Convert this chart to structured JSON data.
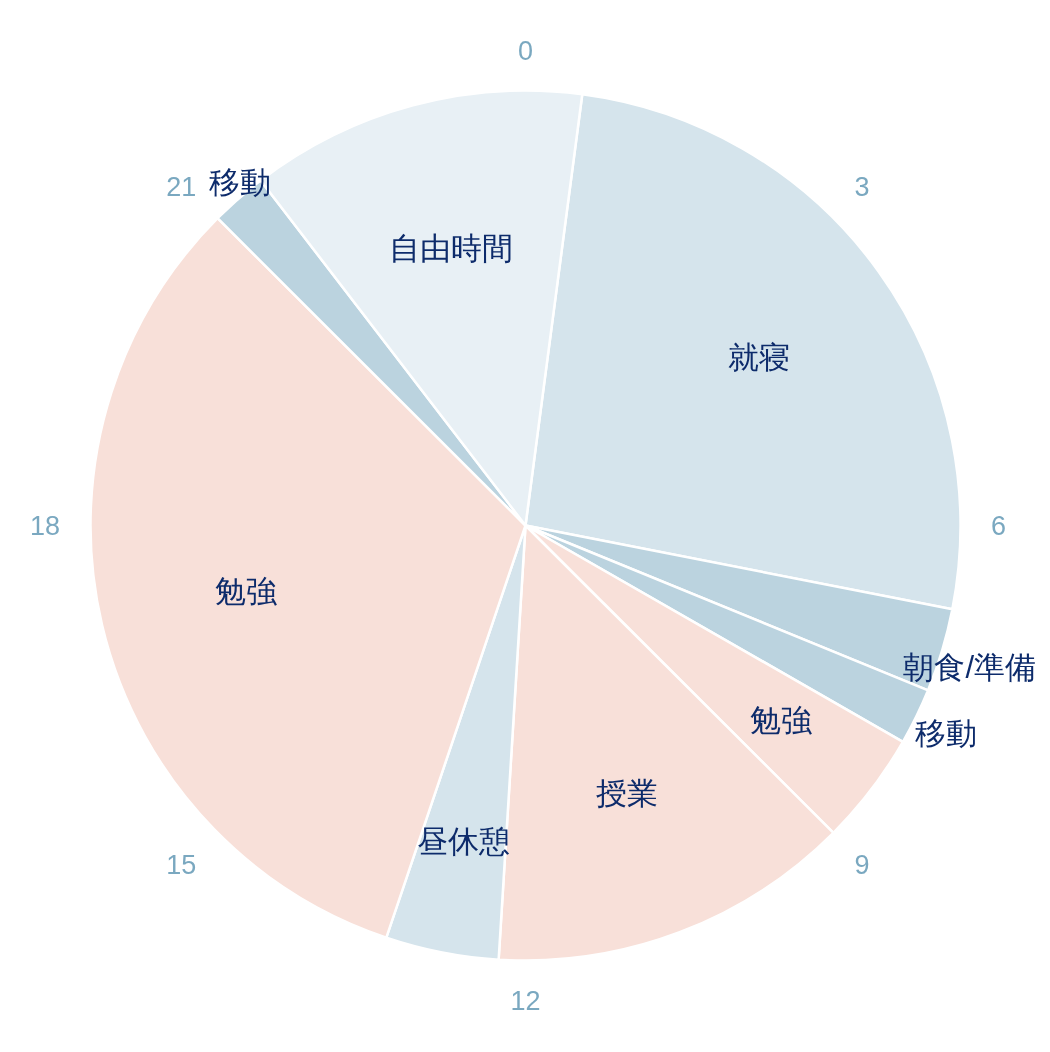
{
  "chart_data": {
    "type": "pie",
    "categories": [
      "就寝",
      "朝食/準備",
      "移動",
      "勉強",
      "授業",
      "昼休憩",
      "勉強",
      "移動",
      "自由時間"
    ],
    "values": [
      26.0,
      3.1,
      2.1,
      4.2,
      13.5,
      4.2,
      32.3,
      2.1,
      12.5
    ],
    "colors": [
      "#d5e4ec",
      "#bbd3df",
      "#bbd3df",
      "#f8e0d9",
      "#f8e0d9",
      "#d5e4ec",
      "#f8e0d9",
      "#bbd3df",
      "#e8f0f5"
    ],
    "annotations": [
      "0",
      "3",
      "6",
      "9",
      "12",
      "15",
      "18",
      "21"
    ]
  }
}
